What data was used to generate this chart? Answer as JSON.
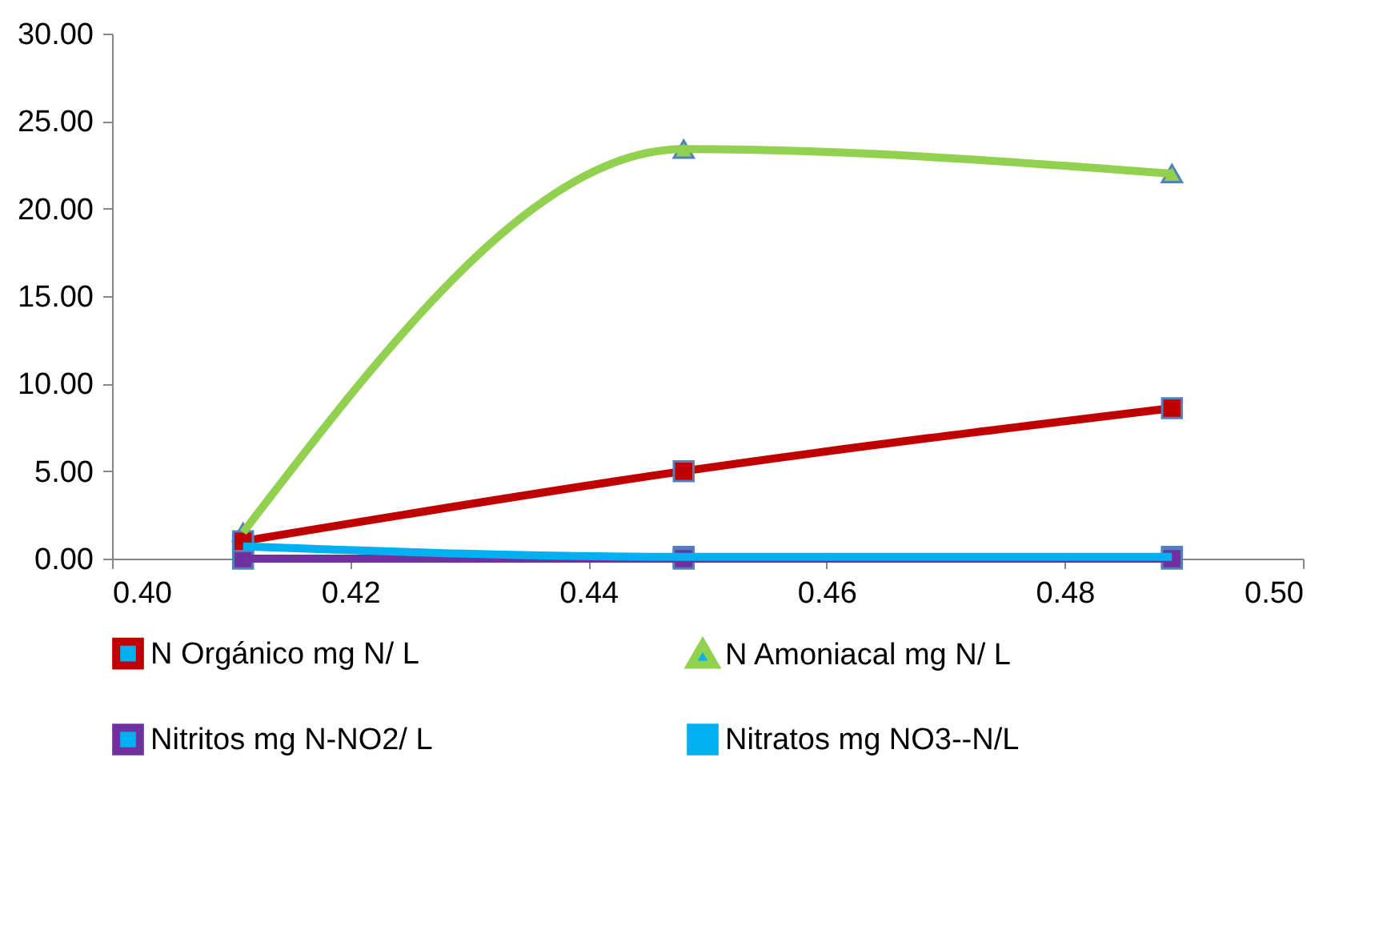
{
  "chart_data": {
    "type": "line",
    "x": [
      0.411,
      0.448,
      0.489
    ],
    "series": [
      {
        "name": "N Orgánico mg N/ L",
        "color": "#c00000",
        "marker": "square",
        "values": [
          1.0,
          5.0,
          8.6
        ]
      },
      {
        "name": "N Amoniacal mg N/ L",
        "color": "#92d050",
        "marker": "triangle",
        "values": [
          1.5,
          23.4,
          22.0
        ]
      },
      {
        "name": "Nitritos mg N-NO2/ L",
        "color": "#7030a0",
        "marker": "square",
        "values": [
          0.0,
          0.0,
          0.0
        ]
      },
      {
        "name": "Nitratos mg NO3--N/L",
        "color": "#00b0f0",
        "marker": "cross",
        "values": [
          0.7,
          0.1,
          0.1
        ]
      }
    ],
    "xlim": [
      0.4,
      0.5
    ],
    "xticks": [
      {
        "value": 0.4,
        "label": "0.40"
      },
      {
        "value": 0.42,
        "label": "0.42"
      },
      {
        "value": 0.44,
        "label": "0.44"
      },
      {
        "value": 0.46,
        "label": "0.46"
      },
      {
        "value": 0.48,
        "label": "0.48"
      },
      {
        "value": 0.5,
        "label": "0.50"
      }
    ],
    "ylim": [
      0,
      30
    ],
    "yticks": [
      {
        "value": 0,
        "label": "0.00"
      },
      {
        "value": 5,
        "label": "5.00"
      },
      {
        "value": 10,
        "label": "10.00"
      },
      {
        "value": 15,
        "label": "15.00"
      },
      {
        "value": 20,
        "label": "20.00"
      },
      {
        "value": 25,
        "label": "25.00"
      },
      {
        "value": 30,
        "label": "30.00"
      }
    ],
    "grid": false,
    "legend": "bottom",
    "line_style": "solid"
  }
}
